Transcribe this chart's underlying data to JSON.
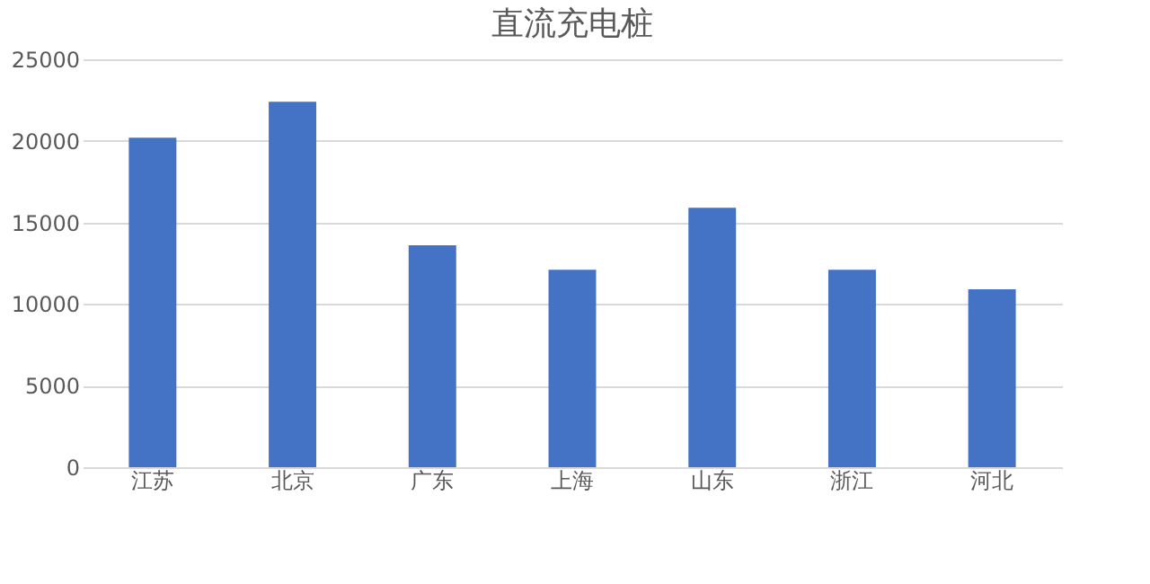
{
  "chart_data": {
    "type": "bar",
    "title": "直流充电桩",
    "categories": [
      "江苏",
      "北京",
      "广东",
      "上海",
      "山东",
      "浙江",
      "河北"
    ],
    "series": [
      {
        "color": "#4472c4",
        "values": [
          20200,
          22400,
          13600,
          12100,
          15900,
          12100,
          10900
        ]
      }
    ],
    "ylim": [
      0,
      25000
    ],
    "yticks": [
      0,
      5000,
      10000,
      15000,
      20000,
      25000
    ],
    "grid": "y"
  }
}
